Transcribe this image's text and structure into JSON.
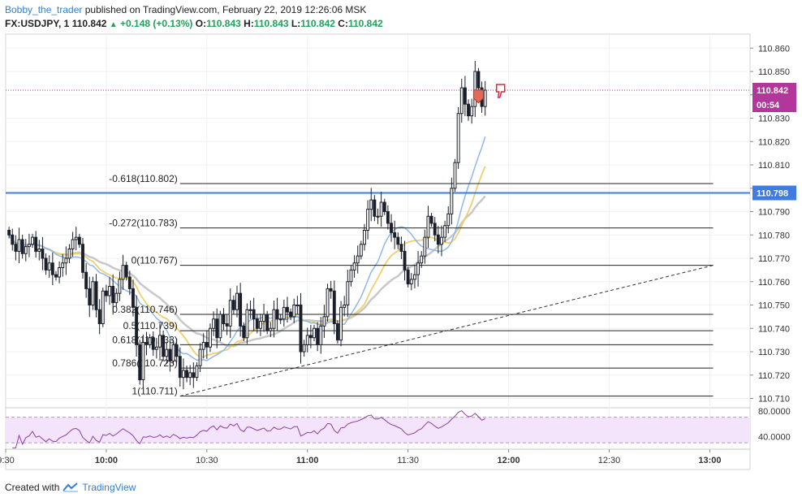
{
  "header": {
    "author": "Bobby_the_trader",
    "published": "published on TradingView.com, February 22, 2019 12:26:06 MSK",
    "symbol": "FX:USDJPY, 1",
    "last": "110.842",
    "change": "+0.148 (+0.13%)",
    "open_label": "O:",
    "open": "110.843",
    "high_label": "H:",
    "high": "110.843",
    "low_label": "L:",
    "low": "110.842",
    "close_label": "C:",
    "close": "110.842"
  },
  "footer": {
    "created_with": "Created with",
    "brand": "TradingView"
  },
  "colors": {
    "bullish": "#ffffff",
    "bearish": "#1b1f2a",
    "blue_line": "#3f7be0",
    "fib_line": "#222222",
    "ma_blue": "#8fb8ea",
    "ma_orange": "#f0cf6e",
    "ma_gray": "#c8c8c8",
    "rsi_line": "#8b3fa0",
    "rsi_band": "#f3e4fb",
    "price_marker": "#b3369a",
    "brand": "#2f7ed8"
  },
  "chart_data": {
    "type": "candlestick",
    "timeframe": "1 minute",
    "y_range": [
      110.706,
      110.866
    ],
    "y_ticks": [
      "110.860",
      "110.850",
      "110.840",
      "110.830",
      "110.820",
      "110.810",
      "110.800",
      "110.790",
      "110.780",
      "110.770",
      "110.760",
      "110.750",
      "110.740",
      "110.730",
      "110.720",
      "110.710"
    ],
    "x_ticks": [
      {
        "label": "9:30",
        "t": 0
      },
      {
        "label": "10:00",
        "t": 30
      },
      {
        "label": "10:30",
        "t": 60
      },
      {
        "label": "11:00",
        "t": 90
      },
      {
        "label": "11:30",
        "t": 120
      },
      {
        "label": "12:00",
        "t": 150
      },
      {
        "label": "12:30",
        "t": 180
      },
      {
        "label": "13:00",
        "t": 210
      }
    ],
    "x_range_minutes": [
      0,
      222
    ],
    "price_labels": {
      "last": "110.842",
      "countdown": "00:54",
      "horizontal": "110.798"
    },
    "horizontal_line": 110.798,
    "last_price": 110.842,
    "fib_levels": [
      {
        "label": "-0.618(110.802)",
        "value": 110.802
      },
      {
        "label": "-0.272(110.783)",
        "value": 110.783
      },
      {
        "label": "0(110.767)",
        "value": 110.767
      },
      {
        "label": "0.382(110.746)",
        "value": 110.746
      },
      {
        "label": "0.5(110.739)",
        "value": 110.739
      },
      {
        "label": "0.618(110.733)",
        "value": 110.733
      },
      {
        "label": "0.786(110.723)",
        "value": 110.723
      },
      {
        "label": "1(110.711)",
        "value": 110.711
      }
    ],
    "trendline": {
      "t1": 52,
      "p1": 110.711,
      "t2": 211,
      "p2": 110.767
    },
    "closes": [
      110.78,
      110.776,
      110.773,
      110.778,
      110.772,
      110.775,
      110.776,
      110.779,
      110.773,
      110.774,
      110.77,
      110.765,
      110.768,
      110.763,
      110.762,
      110.766,
      110.768,
      110.77,
      110.774,
      110.778,
      110.779,
      110.776,
      110.764,
      110.757,
      110.75,
      110.76,
      110.748,
      110.742,
      110.756,
      110.754,
      110.758,
      110.751,
      110.755,
      110.761,
      110.767,
      110.762,
      110.757,
      110.749,
      110.733,
      110.718,
      110.734,
      110.733,
      110.736,
      110.731,
      110.732,
      110.737,
      110.728,
      110.731,
      110.726,
      110.733,
      110.728,
      110.719,
      110.722,
      110.719,
      110.721,
      110.719,
      110.724,
      110.731,
      110.734,
      110.732,
      110.74,
      110.744,
      110.736,
      110.746,
      110.742,
      110.741,
      110.752,
      110.748,
      110.755,
      110.741,
      110.736,
      110.748,
      110.748,
      110.744,
      110.74,
      110.743,
      110.746,
      110.739,
      110.74,
      110.748,
      110.744,
      110.744,
      110.749,
      110.747,
      110.745,
      110.75,
      110.75,
      110.73,
      110.733,
      110.737,
      110.736,
      110.74,
      110.733,
      110.741,
      110.745,
      110.757,
      110.756,
      110.742,
      110.735,
      110.749,
      110.75,
      110.76,
      110.765,
      110.768,
      110.771,
      110.776,
      110.782,
      110.791,
      110.795,
      110.788,
      110.788,
      110.794,
      110.79,
      110.785,
      110.781,
      110.779,
      110.776,
      110.773,
      110.765,
      110.759,
      110.761,
      110.763,
      110.768,
      110.771,
      110.779,
      110.788,
      110.785,
      110.78,
      110.776,
      110.779,
      110.784,
      110.789,
      110.8,
      110.811,
      110.832,
      110.843,
      110.836,
      110.831,
      110.835,
      110.85,
      110.843,
      110.835,
      110.842
    ],
    "rsi": {
      "ticks": [
        "80.0000",
        "40.0000"
      ],
      "band": [
        70,
        30
      ],
      "range": [
        20,
        85
      ]
    },
    "moving_averages": [
      "blue",
      "orange",
      "gray"
    ]
  }
}
